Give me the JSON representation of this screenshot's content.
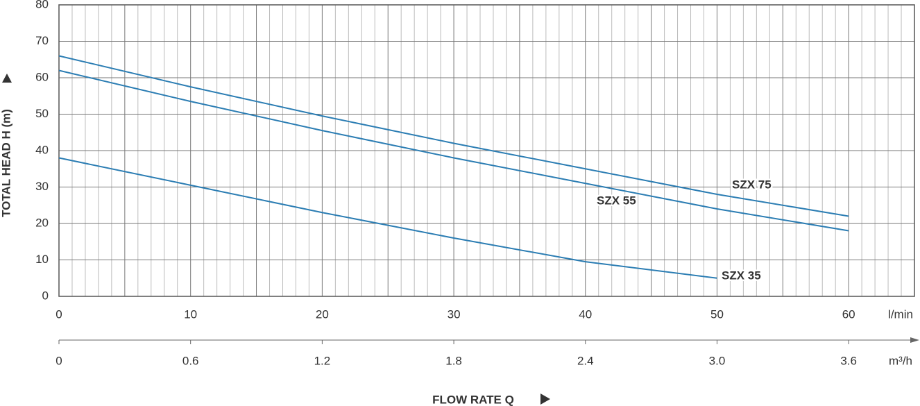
{
  "chart_data": {
    "type": "line",
    "y_label": "TOTAL HEAD H (m)",
    "x_label": "FLOW RATE Q",
    "x_unit": "l/min",
    "x2_unit": "m³/h",
    "x": [
      0,
      10,
      20,
      30,
      40,
      50,
      60
    ],
    "series": [
      {
        "name": "SZX 75",
        "color": "#2b7db3",
        "values": [
          66,
          57.5,
          49.5,
          42,
          35,
          28,
          22
        ]
      },
      {
        "name": "SZX 55",
        "color": "#2b7db3",
        "values": [
          62,
          53.5,
          45.5,
          38,
          31,
          24,
          18
        ]
      },
      {
        "name": "SZX 35",
        "color": "#2b7db3",
        "values": [
          38,
          30.5,
          23,
          16,
          9.5,
          5,
          null
        ]
      }
    ],
    "xlim": [
      0,
      65
    ],
    "xticks": [
      0,
      10,
      20,
      30,
      40,
      50,
      60
    ],
    "x2lim": [
      0,
      3.9
    ],
    "x2ticks": [
      0,
      0.6,
      1.2,
      1.8,
      2.4,
      {
        "value": 3,
        "label": "3.0"
      },
      3.6
    ],
    "ylim": [
      0,
      80
    ],
    "yticks": [
      0,
      10,
      20,
      30,
      40,
      50,
      60,
      70,
      80
    ],
    "grid": true
  }
}
